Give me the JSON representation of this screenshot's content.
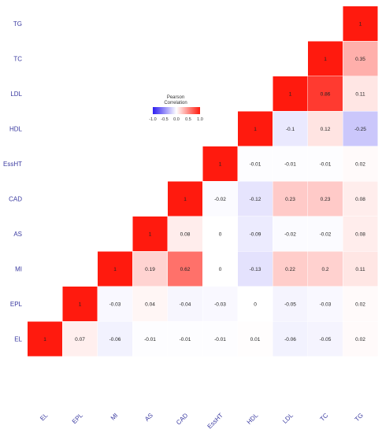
{
  "chart_data": {
    "type": "heatmap",
    "rows_top_to_bottom": [
      "TG",
      "TC",
      "LDL",
      "HDL",
      "EssHT",
      "CAD",
      "AS",
      "MI",
      "EPL",
      "EL"
    ],
    "columns_left_to_right": [
      "EL",
      "EPL",
      "MI",
      "AS",
      "CAD",
      "EssHT",
      "HDL",
      "LDL",
      "TC",
      "TG"
    ],
    "matrix": [
      [
        null,
        null,
        null,
        null,
        null,
        null,
        null,
        null,
        null,
        1
      ],
      [
        null,
        null,
        null,
        null,
        null,
        null,
        null,
        null,
        1,
        0.35
      ],
      [
        null,
        null,
        null,
        null,
        null,
        null,
        null,
        1,
        0.86,
        0.11
      ],
      [
        null,
        null,
        null,
        null,
        null,
        null,
        1,
        -0.1,
        0.12,
        -0.25
      ],
      [
        null,
        null,
        null,
        null,
        null,
        1,
        -0.01,
        -0.01,
        -0.01,
        0.02
      ],
      [
        null,
        null,
        null,
        null,
        1,
        -0.02,
        -0.12,
        0.23,
        0.23,
        0.08
      ],
      [
        null,
        null,
        null,
        1,
        0.08,
        0,
        -0.09,
        -0.02,
        -0.02,
        0.08
      ],
      [
        null,
        null,
        1,
        0.19,
        0.62,
        0,
        -0.13,
        0.22,
        0.2,
        0.11
      ],
      [
        null,
        1,
        -0.03,
        0.04,
        -0.04,
        -0.03,
        0,
        -0.05,
        -0.03,
        0.02
      ],
      [
        1,
        0.07,
        -0.06,
        -0.01,
        -0.01,
        -0.01,
        0.01,
        -0.06,
        -0.05,
        0.02
      ]
    ],
    "legend": {
      "title_line1": "Pearson",
      "title_line2": "Correlation",
      "ticks": [
        "-1.0",
        "-0.5",
        "0.0",
        "0.5",
        "1.0"
      ],
      "range": [
        -1,
        1
      ],
      "placement": "upper-middle"
    },
    "color_scale": {
      "low": "#2e1ef0",
      "mid": "#ffffff",
      "high": "#ff1a0e"
    },
    "grid": false
  }
}
